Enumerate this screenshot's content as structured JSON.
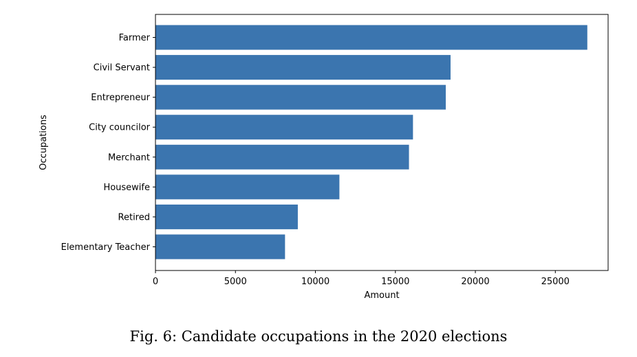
{
  "caption": "Fig. 6: Candidate occupations in the 2020 elections",
  "chart_data": {
    "type": "bar",
    "orientation": "horizontal",
    "categories": [
      "Farmer",
      "Civil Servant",
      "Entrepreneur",
      "City councilor",
      "Merchant",
      "Housewife",
      "Retired",
      "Elementary Teacher"
    ],
    "values": [
      27000,
      18450,
      18150,
      16100,
      15850,
      11500,
      8900,
      8100
    ],
    "xlabel": "Amount",
    "ylabel": "Occupations",
    "xlim": [
      0,
      28300
    ],
    "xticks": [
      0,
      5000,
      10000,
      15000,
      20000,
      25000
    ],
    "xtick_labels": [
      "0",
      "5000",
      "10000",
      "15000",
      "20000",
      "25000"
    ],
    "grid": false,
    "legend": "none",
    "bar_color": "#3b75af"
  }
}
